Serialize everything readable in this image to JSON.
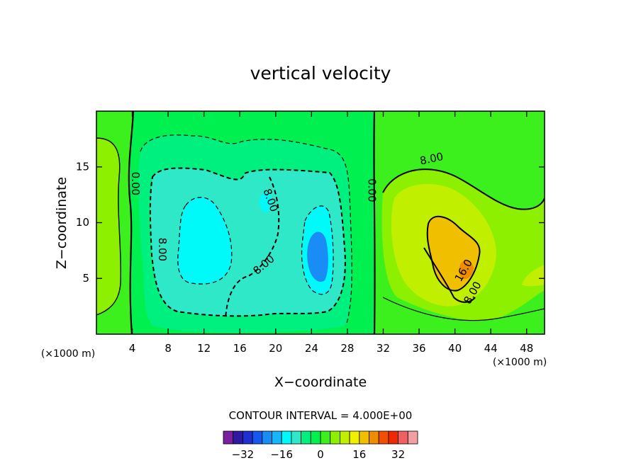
{
  "chart_data": {
    "type": "heatmap",
    "subtype": "filled-contour",
    "title": "vertical velocity",
    "xlabel": "X−coordinate",
    "ylabel": "Z−coordinate",
    "x_unit_label_left": "(×1000 m)",
    "x_unit_label_right": "(×1000 m)",
    "xlim": [
      0,
      50
    ],
    "ylim": [
      0,
      20
    ],
    "x_ticks": [
      4,
      8,
      12,
      16,
      20,
      24,
      28,
      32,
      36,
      40,
      44,
      48
    ],
    "y_ticks": [
      5,
      10,
      15
    ],
    "contour_interval_text": "CONTOUR INTERVAL = 4.000E+00",
    "contour_interval": 4,
    "contour_labels": [
      {
        "text": "0.00",
        "x": 4.3,
        "y": 13.5
      },
      {
        "text": "0.00",
        "x": 30.7,
        "y": 12.9
      },
      {
        "text": "8.00",
        "x": 37.4,
        "y": 15.7
      },
      {
        "text": "8.00",
        "x": 7.3,
        "y": 7.6
      },
      {
        "text": "8.00",
        "x": 19.4,
        "y": 12.0
      },
      {
        "text": "8.00",
        "x": 18.7,
        "y": 6.2
      },
      {
        "text": "16.0",
        "x": 41.0,
        "y": 5.7
      },
      {
        "text": "8.00",
        "x": 42.0,
        "y": 3.7
      }
    ],
    "colorbar": {
      "tick_labels": [
        "−32",
        "−16",
        "0",
        "16",
        "32"
      ],
      "tick_values": [
        -32,
        -16,
        0,
        16,
        32
      ],
      "levels": [
        -36,
        -32,
        -28,
        -24,
        -20,
        -16,
        -12,
        -8,
        -4,
        0,
        4,
        8,
        12,
        16,
        20,
        24,
        28,
        32,
        36
      ],
      "colors": [
        "#7a1fa0",
        "#2f19a0",
        "#1f2fd0",
        "#1557f0",
        "#1a8cf5",
        "#15b6fa",
        "#00fafa",
        "#2ee8c8",
        "#00f080",
        "#00f050",
        "#3cf01e",
        "#8cf000",
        "#c0f000",
        "#f0f000",
        "#f0c000",
        "#f08c00",
        "#f05000",
        "#f02800",
        "#f06060",
        "#f0a0a0"
      ]
    },
    "field_colors": {
      "neg12": "#00fafa",
      "neg8": "#2ee8c8",
      "neg4": "#00f080",
      "zero": "#00f050",
      "pos4": "#3cf01e",
      "pos8": "#8cf000",
      "pos12": "#c0f000",
      "pos16": "#f0c000",
      "pos20": "#f08c00",
      "negcore": "#1a8cf5"
    },
    "grid": false,
    "legend": "bottom colorbar"
  }
}
